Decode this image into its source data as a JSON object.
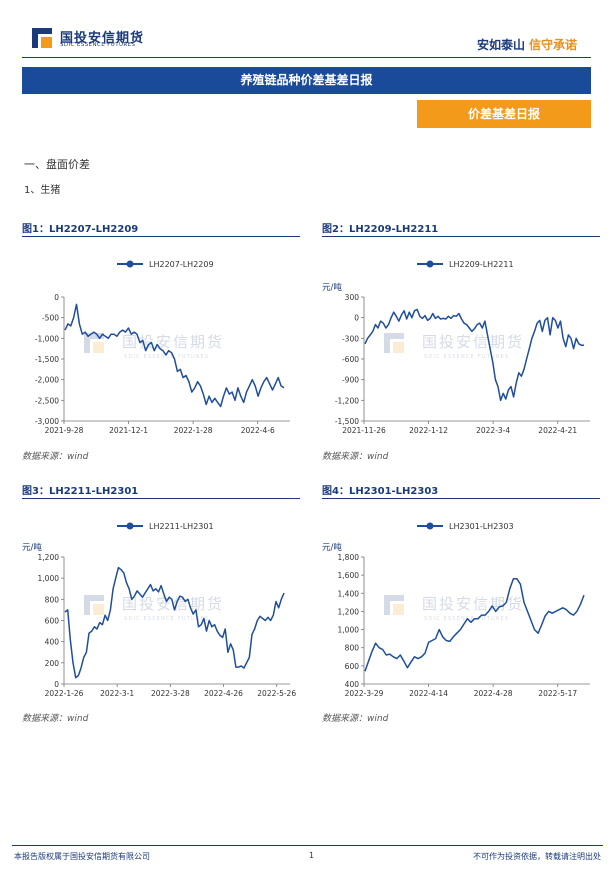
{
  "header": {
    "company_cn": "国投安信期货",
    "company_en": "SDIC ESSENCE FUTURES",
    "slogan_a": "安如泰山",
    "slogan_b": "信守承诺"
  },
  "banner": {
    "title": "养殖链品种价差基差日报"
  },
  "tag": {
    "label": "价差基差日报"
  },
  "sections": {
    "s1": "一、盘面价差",
    "s2": "1、生猪"
  },
  "watermark": {
    "cn": "国投安信期货",
    "en": "SDIC ESSENCE FUTURES"
  },
  "charts": [
    {
      "title": "图1：LH2207-LH2209",
      "legend": "LH2207-LH2209",
      "unit": "",
      "ylim": [
        -3000,
        0
      ],
      "yticks": [
        0,
        -500,
        -1000,
        -1500,
        -2000,
        -2500,
        -3000
      ],
      "ytick_labels": [
        "0",
        "-500",
        "-1,000",
        "-1,500",
        "-2,000",
        "-2,500",
        "-3,000"
      ],
      "xtick_labels": [
        "2021-9-28",
        "2021-12-1",
        "2022-1-28",
        "2022-4-6"
      ],
      "source": "数据来源：wind",
      "chart_data": {
        "type": "line",
        "series": [
          {
            "name": "LH2207-LH2209",
            "values": [
              -800,
              -650,
              -700,
              -500,
              -180,
              -650,
              -900,
              -850,
              -950,
              -900,
              -850,
              -900,
              -1000,
              -900,
              -950,
              -1000,
              -900,
              -900,
              -950,
              -850,
              -800,
              -850,
              -750,
              -900,
              -850,
              -900,
              -1100,
              -1050,
              -1300,
              -1150,
              -1100,
              -1300,
              -1150,
              -1250,
              -1300,
              -1400,
              -1300,
              -1350,
              -1500,
              -1800,
              -1750,
              -1950,
              -1900,
              -2050,
              -2300,
              -2200,
              -2050,
              -2150,
              -2350,
              -2600,
              -2400,
              -2550,
              -2450,
              -2550,
              -2650,
              -2400,
              -2200,
              -2350,
              -2300,
              -2500,
              -2200,
              -2400,
              -2550,
              -2300,
              -2150,
              -2000,
              -2150,
              -2400,
              -2200,
              -2050,
              -1950,
              -2100,
              -2250,
              -2100,
              -1950,
              -2150,
              -2200
            ]
          }
        ]
      }
    },
    {
      "title": "图2：LH2209-LH2211",
      "legend": "LH2209-LH2211",
      "unit": "元/吨",
      "ylim": [
        -1500,
        300
      ],
      "yticks": [
        300,
        0,
        -300,
        -600,
        -900,
        -1200,
        -1500
      ],
      "ytick_labels": [
        "300",
        "0",
        "-300",
        "-600",
        "-900",
        "-1,200",
        "-1,500"
      ],
      "xtick_labels": [
        "2021-11-26",
        "2022-1-12",
        "2022-3-4",
        "2022-4-21"
      ],
      "source": "数据来源：wind",
      "chart_data": {
        "type": "line",
        "series": [
          {
            "name": "LH2209-LH2211",
            "values": [
              -380,
              -300,
              -250,
              -200,
              -100,
              -150,
              -50,
              -80,
              -150,
              -100,
              0,
              80,
              20,
              -50,
              40,
              100,
              -20,
              80,
              0,
              100,
              120,
              20,
              -10,
              30,
              -40,
              -10,
              60,
              -10,
              20,
              -20,
              -10,
              -20,
              20,
              -10,
              30,
              20,
              60,
              -20,
              -80,
              -100,
              -150,
              -200,
              -160,
              -100,
              -80,
              -150,
              -50,
              -250,
              -450,
              -650,
              -900,
              -1000,
              -1200,
              -1100,
              -1180,
              -1050,
              -1000,
              -1150,
              -950,
              -800,
              -850,
              -750,
              -600,
              -450,
              -300,
              -200,
              -80,
              -40,
              -200,
              -40,
              0,
              -250,
              0,
              -40,
              -150,
              -50,
              -300,
              -420,
              -250,
              -300,
              -450,
              -300,
              -380,
              -400,
              -400
            ]
          }
        ]
      }
    },
    {
      "title": "图3：LH2211-LH2301",
      "legend": "LH2211-LH2301",
      "unit": "元/吨",
      "ylim": [
        0,
        1200
      ],
      "yticks": [
        1200,
        1000,
        800,
        600,
        400,
        200,
        0
      ],
      "ytick_labels": [
        "1,200",
        "1,000",
        "800",
        "600",
        "400",
        "200",
        "0"
      ],
      "xtick_labels": [
        "2022-1-26",
        "2022-3-1",
        "2022-3-28",
        "2022-4-26",
        "2022-5-26"
      ],
      "source": "数据来源：wind",
      "chart_data": {
        "type": "line",
        "series": [
          {
            "name": "LH2211-LH2301",
            "values": [
              680,
              700,
              420,
              200,
              60,
              80,
              150,
              250,
              300,
              480,
              500,
              540,
              520,
              580,
              560,
              650,
              600,
              700,
              900,
              1000,
              1100,
              1080,
              1050,
              960,
              900,
              800,
              830,
              880,
              850,
              820,
              860,
              900,
              940,
              880,
              900,
              870,
              930,
              850,
              780,
              820,
              800,
              700,
              780,
              830,
              820,
              780,
              800,
              720,
              660,
              700,
              540,
              560,
              620,
              500,
              600,
              540,
              560,
              500,
              460,
              440,
              520,
              300,
              380,
              320,
              160,
              160,
              170,
              150,
              200,
              250,
              470,
              520,
              600,
              640,
              620,
              600,
              630,
              600,
              650,
              780,
              720,
              800,
              860
            ]
          }
        ]
      }
    },
    {
      "title": "图4：LH2301-LH2303",
      "legend": "LH2301-LH2303",
      "unit": "元/吨",
      "ylim": [
        400,
        1800
      ],
      "yticks": [
        1800,
        1600,
        1400,
        1200,
        1000,
        800,
        600,
        400
      ],
      "ytick_labels": [
        "1,800",
        "1,600",
        "1,400",
        "1,200",
        "1,000",
        "800",
        "600",
        "400"
      ],
      "xtick_labels": [
        "2022-3-29",
        "2022-4-14",
        "2022-4-28",
        "2022-5-17"
      ],
      "source": "数据来源：wind",
      "chart_data": {
        "type": "line",
        "series": [
          {
            "name": "LH2301-LH2303",
            "values": [
              540,
              650,
              760,
              850,
              800,
              780,
              720,
              730,
              700,
              680,
              720,
              650,
              580,
              640,
              700,
              680,
              700,
              740,
              860,
              880,
              900,
              1000,
              920,
              880,
              870,
              920,
              960,
              1000,
              1060,
              1120,
              1080,
              1120,
              1120,
              1160,
              1160,
              1200,
              1260,
              1200,
              1250,
              1260,
              1300,
              1450,
              1560,
              1560,
              1500,
              1300,
              1200,
              1100,
              1000,
              960,
              1050,
              1150,
              1200,
              1180,
              1200,
              1220,
              1240,
              1220,
              1180,
              1160,
              1200,
              1280,
              1380
            ]
          }
        ]
      }
    }
  ],
  "footer": {
    "left": "本报告版权属于国投安信期货有限公司",
    "page": "1",
    "right": "不可作为投资依据，转载请注明出处"
  },
  "colors": {
    "brand": "#1a3a7a",
    "banner": "#1a4a9a",
    "accent": "#f49a1a",
    "line": "#1f4e9c"
  }
}
